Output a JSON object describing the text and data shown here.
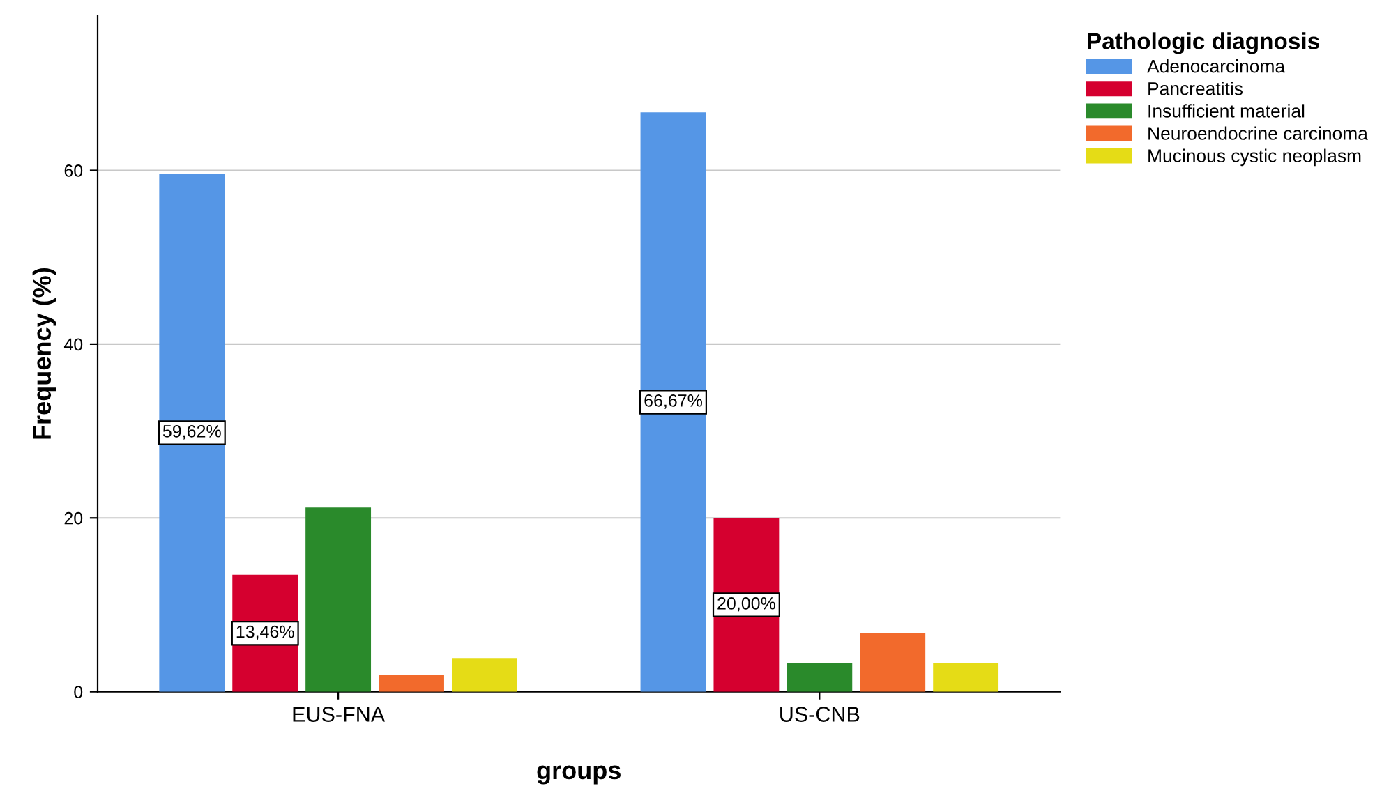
{
  "chart_data": {
    "type": "bar",
    "xlabel": "groups",
    "ylabel": "Frequency (%)",
    "legend_title": "Pathologic diagnosis",
    "categories": [
      "EUS-FNA",
      "US-CNB"
    ],
    "series": [
      {
        "name": "Adenocarcinoma",
        "color": "#5596e6",
        "values": [
          59.62,
          66.67
        ],
        "value_labels": [
          "59,62%",
          "66,67%"
        ]
      },
      {
        "name": "Pancreatitis",
        "color": "#d5002f",
        "values": [
          13.46,
          20.0
        ],
        "value_labels": [
          "13,46%",
          "20,00%"
        ]
      },
      {
        "name": "Insufficient material",
        "color": "#2a8a2b",
        "values": [
          21.2,
          3.3
        ],
        "value_labels": [
          null,
          null
        ]
      },
      {
        "name": "Neuroendocrine carcinoma",
        "color": "#f26a2c",
        "values": [
          1.9,
          6.7
        ],
        "value_labels": [
          null,
          null
        ]
      },
      {
        "name": "Mucinous cystic neoplasm",
        "color": "#e5dc16",
        "values": [
          3.8,
          3.3
        ],
        "value_labels": [
          null,
          null
        ]
      }
    ],
    "ylim": [
      0,
      77.8
    ],
    "yticks": [
      0,
      20,
      40,
      60
    ],
    "grid": "y",
    "legend": "top right"
  }
}
